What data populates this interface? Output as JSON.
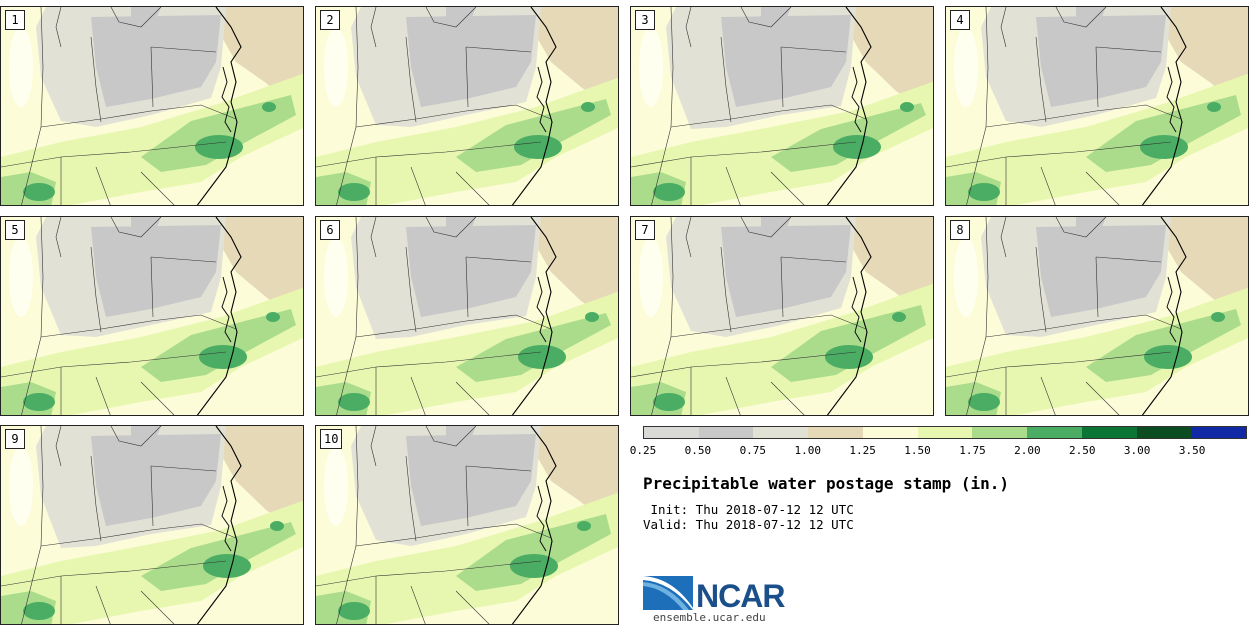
{
  "stamps": [
    {
      "label": "1"
    },
    {
      "label": "2"
    },
    {
      "label": "3"
    },
    {
      "label": "4"
    },
    {
      "label": "5"
    },
    {
      "label": "6"
    },
    {
      "label": "7"
    },
    {
      "label": "8"
    },
    {
      "label": "9"
    },
    {
      "label": "10"
    }
  ],
  "legend": {
    "colors": [
      "#d9d9d6",
      "#c8c8c8",
      "#e2e1d6",
      "#e6d9b8",
      "#fcfcd9",
      "#e8f7b0",
      "#abdc8c",
      "#4aad63",
      "#0a7535",
      "#0b4d20",
      "#1229a6"
    ],
    "ticks": [
      "0.25",
      "0.50",
      "0.75",
      "1.00",
      "1.25",
      "1.50",
      "1.75",
      "2.00",
      "2.50",
      "3.00",
      "3.50"
    ]
  },
  "title": "Precipitable water postage stamp (in.)",
  "init_line": " Init: Thu 2018-07-12 12 UTC",
  "valid_line": "Valid: Thu 2018-07-12 12 UTC",
  "logo": {
    "text": "NCAR",
    "site": "ensemble.ucar.edu"
  },
  "colors": {
    "grey": "#c8c8c8",
    "lightgrey": "#e2e1d6",
    "tan": "#e6d9b8",
    "cream": "#fcfcd9",
    "lightgreen": "#e8f7b0",
    "green": "#abdc8c",
    "midgreen": "#4aad63"
  }
}
